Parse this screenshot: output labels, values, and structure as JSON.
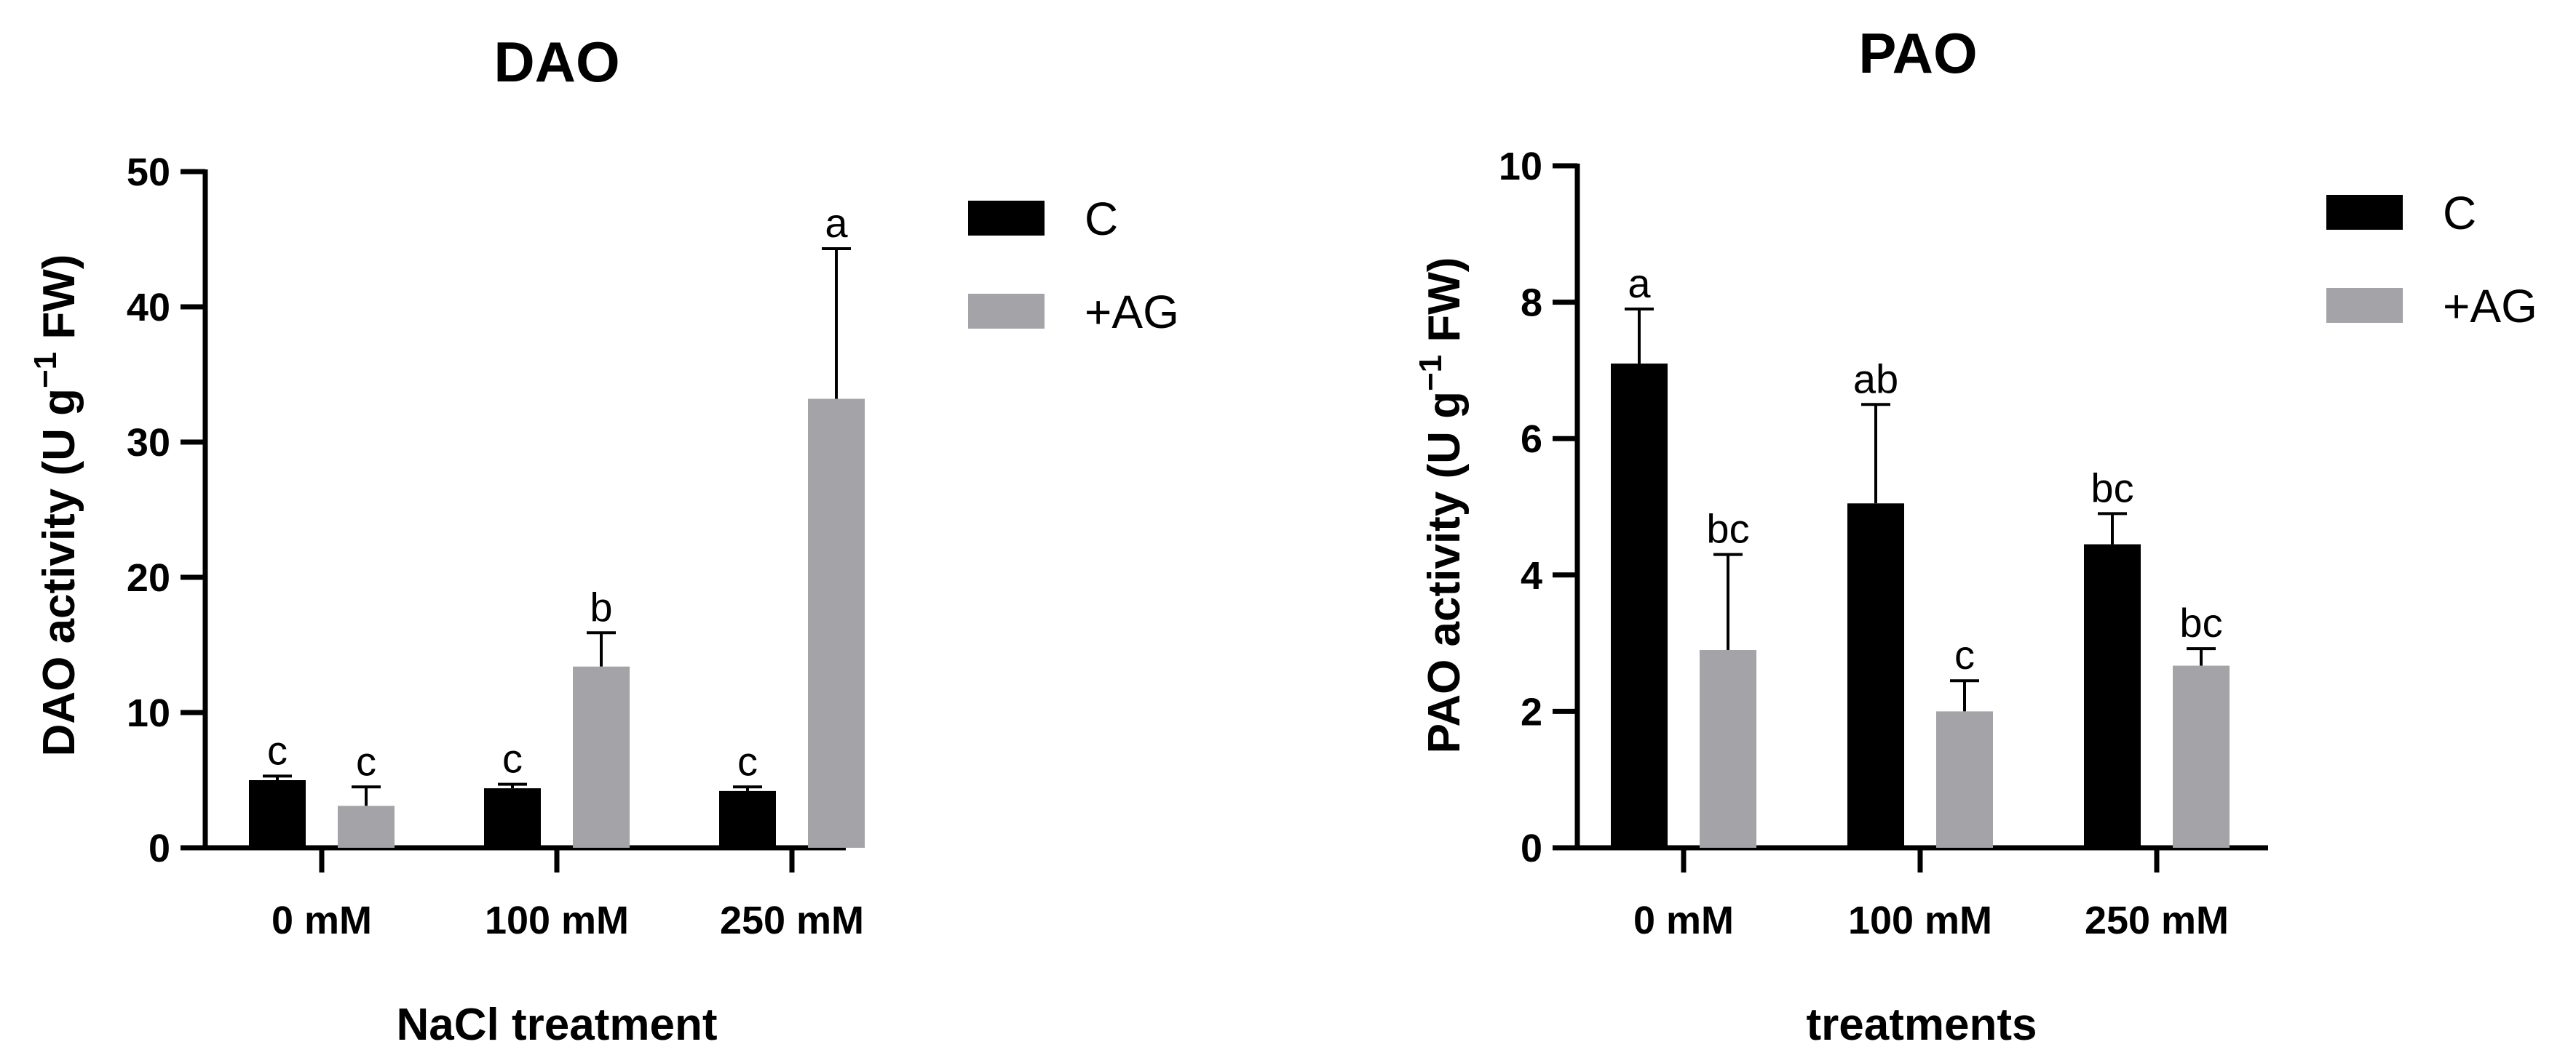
{
  "chart_data": [
    {
      "type": "bar",
      "title": "DAO",
      "xlabel": "NaCl treatment",
      "ylabel": {
        "prefix": "DAO activity (U g",
        "superscript": "−1",
        "suffix": " FW)"
      },
      "ylim": [
        0,
        50
      ],
      "yticks": [
        0,
        10,
        20,
        30,
        40,
        50
      ],
      "grid": false,
      "legend_position": "top-right",
      "categories": [
        "0 mM",
        "100 mM",
        "250 mM"
      ],
      "series": [
        {
          "name": "C",
          "color": "#000000",
          "values": [
            5.0,
            4.4,
            4.2
          ],
          "errors": [
            0.3,
            0.3,
            0.3
          ],
          "letters": [
            "c",
            "c",
            "c"
          ]
        },
        {
          "name": "+AG",
          "color": "#a3a3a8",
          "values": [
            3.1,
            13.4,
            33.2
          ],
          "errors": [
            1.4,
            2.5,
            11.1
          ],
          "letters": [
            "c",
            "b",
            "a"
          ]
        }
      ]
    },
    {
      "type": "bar",
      "title": "PAO",
      "xlabel": "treatments",
      "ylabel": {
        "prefix": "PAO activity (U g",
        "superscript": "−1",
        "suffix": " FW)"
      },
      "ylim": [
        0,
        10
      ],
      "yticks": [
        0,
        2,
        4,
        6,
        8,
        10
      ],
      "grid": false,
      "legend_position": "top-right",
      "categories": [
        "0 mM",
        "100 mM",
        "250 mM"
      ],
      "series": [
        {
          "name": "C",
          "color": "#000000",
          "values": [
            7.1,
            5.05,
            4.45
          ],
          "errors": [
            0.8,
            1.45,
            0.45
          ],
          "letters": [
            "a",
            "ab",
            "bc"
          ]
        },
        {
          "name": "+AG",
          "color": "#a3a3a8",
          "values": [
            2.9,
            2.0,
            2.67
          ],
          "errors": [
            1.4,
            0.45,
            0.25
          ],
          "letters": [
            "bc",
            "c",
            "bc"
          ]
        }
      ]
    }
  ]
}
